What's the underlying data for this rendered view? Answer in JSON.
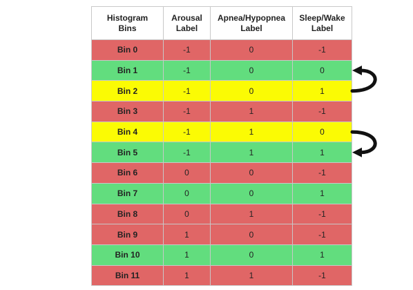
{
  "colors": {
    "red": "#e06666",
    "green": "#62dd7e",
    "yellow": "#fbfb04",
    "arrow": "#111111"
  },
  "headers": [
    "Histogram\nBins",
    "Arousal\nLabel",
    "Apnea/Hypopnea\nLabel",
    "Sleep/Wake\nLabel"
  ],
  "rows": [
    {
      "bin": "Bin 0",
      "arousal": "-1",
      "apnea": "0",
      "sleep": "-1",
      "color": "red"
    },
    {
      "bin": "Bin 1",
      "arousal": "-1",
      "apnea": "0",
      "sleep": "0",
      "color": "green"
    },
    {
      "bin": "Bin 2",
      "arousal": "-1",
      "apnea": "0",
      "sleep": "1",
      "color": "yellow"
    },
    {
      "bin": "Bin 3",
      "arousal": "-1",
      "apnea": "1",
      "sleep": "-1",
      "color": "red"
    },
    {
      "bin": "Bin 4",
      "arousal": "-1",
      "apnea": "1",
      "sleep": "0",
      "color": "yellow"
    },
    {
      "bin": "Bin 5",
      "arousal": "-1",
      "apnea": "1",
      "sleep": "1",
      "color": "green"
    },
    {
      "bin": "Bin 6",
      "arousal": "0",
      "apnea": "0",
      "sleep": "-1",
      "color": "red"
    },
    {
      "bin": "Bin 7",
      "arousal": "0",
      "apnea": "0",
      "sleep": "1",
      "color": "green"
    },
    {
      "bin": "Bin 8",
      "arousal": "0",
      "apnea": "1",
      "sleep": "-1",
      "color": "red"
    },
    {
      "bin": "Bin 9",
      "arousal": "1",
      "apnea": "0",
      "sleep": "-1",
      "color": "red"
    },
    {
      "bin": "Bin 10",
      "arousal": "1",
      "apnea": "0",
      "sleep": "1",
      "color": "green"
    },
    {
      "bin": "Bin 11",
      "arousal": "1",
      "apnea": "1",
      "sleep": "-1",
      "color": "red"
    }
  ],
  "arrows": [
    {
      "from": "Bin 2",
      "to": "Bin 1"
    },
    {
      "from": "Bin 4",
      "to": "Bin 5"
    }
  ]
}
